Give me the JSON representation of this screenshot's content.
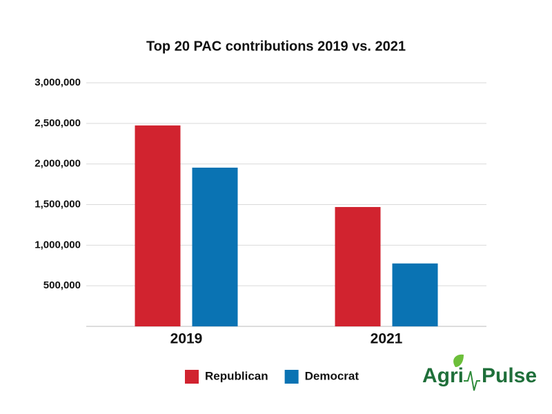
{
  "chart_data": {
    "type": "bar",
    "title": "Top 20 PAC contributions 2019 vs. 2021",
    "categories": [
      "2019",
      "2021"
    ],
    "series": [
      {
        "name": "Republican",
        "color": "#d1232f",
        "values": [
          2475000,
          1470000
        ]
      },
      {
        "name": "Democrat",
        "color": "#0a73b3",
        "values": [
          1955000,
          775000
        ]
      }
    ],
    "ylim": [
      0,
      3000000
    ],
    "yticks": [
      {
        "value": 500000,
        "label": "500,000"
      },
      {
        "value": 1000000,
        "label": "1,000,000"
      },
      {
        "value": 1500000,
        "label": "1,500,000"
      },
      {
        "value": 2000000,
        "label": "2,000,000"
      },
      {
        "value": 2500000,
        "label": "2,500,000"
      },
      {
        "value": 3000000,
        "label": "3,000,000"
      }
    ],
    "grid": true
  },
  "logo": {
    "left": "Agri",
    "right": "Pulse"
  }
}
